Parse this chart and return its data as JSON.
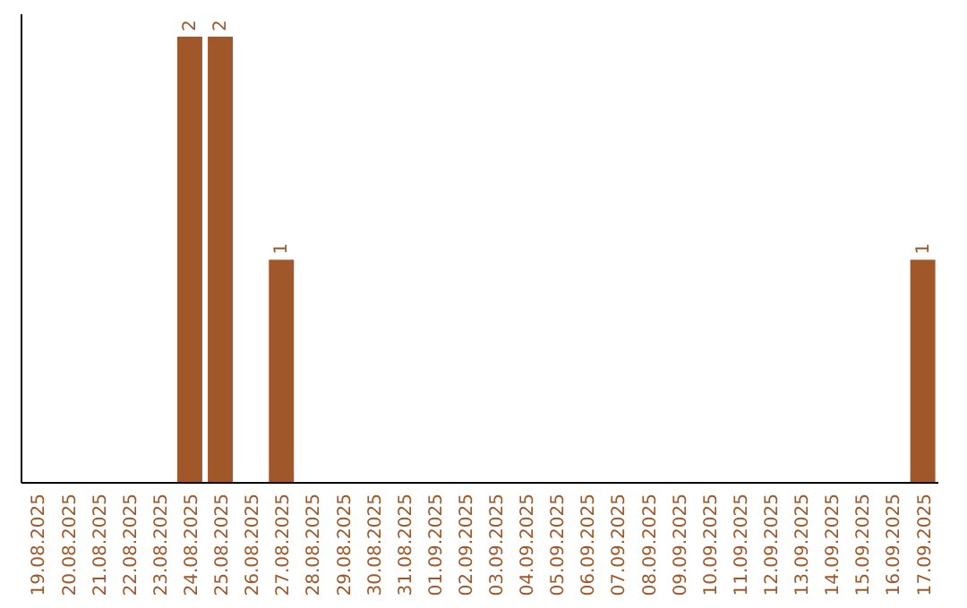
{
  "chart_data": {
    "type": "bar",
    "categories": [
      "19.08.2025",
      "20.08.2025",
      "21.08.2025",
      "22.08.2025",
      "23.08.2025",
      "24.08.2025",
      "25.08.2025",
      "26.08.2025",
      "27.08.2025",
      "28.08.2025",
      "29.08.2025",
      "30.08.2025",
      "31.08.2025",
      "01.09.2025",
      "02.09.2025",
      "03.09.2025",
      "04.09.2025",
      "05.09.2025",
      "06.09.2025",
      "07.09.2025",
      "08.09.2025",
      "09.09.2025",
      "10.09.2025",
      "11.09.2025",
      "12.09.2025",
      "13.09.2025",
      "14.09.2025",
      "15.09.2025",
      "16.09.2025",
      "17.09.2025"
    ],
    "values": [
      0,
      0,
      0,
      0,
      0,
      2,
      2,
      0,
      1,
      0,
      0,
      0,
      0,
      0,
      0,
      0,
      0,
      0,
      0,
      0,
      0,
      0,
      0,
      0,
      0,
      0,
      0,
      0,
      0,
      1
    ],
    "value_labels": [
      null,
      null,
      null,
      null,
      null,
      "2",
      "2",
      null,
      "1",
      null,
      null,
      null,
      null,
      null,
      null,
      null,
      null,
      null,
      null,
      null,
      null,
      null,
      null,
      null,
      null,
      null,
      null,
      null,
      null,
      "1"
    ],
    "color": "#a0582a",
    "ylim": [
      0,
      2.1
    ],
    "tick_labels": "x"
  }
}
